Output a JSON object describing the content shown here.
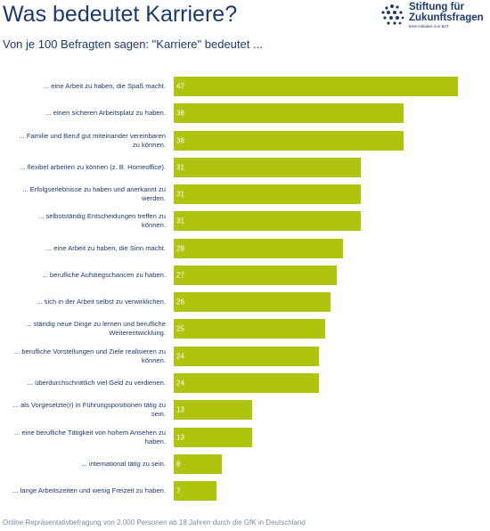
{
  "header": {
    "title": "Was bedeutet Karriere?",
    "subtitle": "Von je 100 Befragten sagen: \"Karriere\" bedeutet ...",
    "logo_line1": "Stiftung für",
    "logo_line2": "Zukunftsfragen",
    "logo_tagline": "Eine Initiative von BAT"
  },
  "chart_data": {
    "type": "bar",
    "orientation": "horizontal",
    "color": "#afc40f",
    "categories": [
      "... eine Arbeit zu haben, die Spaß macht.",
      "... einen sicheren Arbeitsplatz zu haben.",
      "... Familie und Beruf gut miteinander vereinbaren zu können.",
      "... flexibel arbeiten zu können (z. B. Homeoffice).",
      "... Erfolgserlebnisse zu haben und anerkannt zu werden.",
      "... selbstständig Entscheidungen treffen zu können.",
      "... eine Arbeit zu haben, die Sinn macht.",
      "... berufliche Aufstiegschancen zu haben.",
      "... sich in der Arbeit selbst zu verwirklichen.",
      "... ständig neue Dinge zu lernen und berufliche Weiterentwicklung.",
      "... berufliche Vorstellungen und Ziele realisieren zu können.",
      "... überdurchschnittlich viel Geld zu verdienen.",
      "... als Vorgesetzte(r) in Führungspositionen tätig zu sein.",
      "... eine berufliche Tätigkeit von hohem Ansehen zu haben.",
      "... international tätig zu sein.",
      "... lange Arbeitszeiten und wenig Freizeit zu haben."
    ],
    "values": [
      47,
      38,
      38,
      31,
      31,
      31,
      28,
      27,
      26,
      25,
      24,
      24,
      13,
      13,
      8,
      7
    ]
  },
  "footer": {
    "note": "Online Repräsentativbefragung von 2.000 Personen ab 18 Jahren durch die GfK in Deutschland"
  }
}
